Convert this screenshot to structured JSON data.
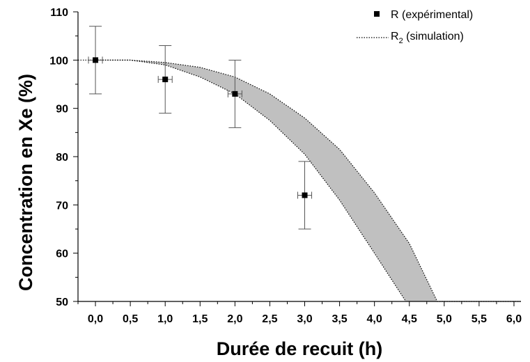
{
  "chart_data": {
    "type": "scatter",
    "title": "",
    "xlabel": "Durée de recuit (h)",
    "ylabel": "Concentration en Xe (%)",
    "xlim": [
      -0.25,
      6.1
    ],
    "ylim": [
      50,
      110
    ],
    "x_ticks": [
      0.0,
      0.5,
      1.0,
      1.5,
      2.0,
      2.5,
      3.0,
      3.5,
      4.0,
      4.5,
      5.0,
      5.5,
      6.0
    ],
    "x_tick_labels": [
      "0,0",
      "0,5",
      "1,0",
      "1,5",
      "2,0",
      "2,5",
      "3,0",
      "3,5",
      "4,0",
      "4,5",
      "5,0",
      "5,5",
      "6,0"
    ],
    "y_ticks": [
      50,
      60,
      70,
      80,
      90,
      100,
      110
    ],
    "y_tick_labels": [
      "50",
      "60",
      "70",
      "80",
      "90",
      "100",
      "110"
    ],
    "grid": false,
    "legend_position": "top-right",
    "legend": {
      "r_label": "R (expérimental)",
      "r2_main": "R",
      "r2_sub": "2",
      "r2_rest": " (simulation)"
    },
    "series": [
      {
        "name": "R (expérimental)",
        "marker": "square",
        "color": "#000000",
        "x": [
          0.0,
          1.0,
          2.0,
          3.0
        ],
        "y": [
          100,
          96,
          93,
          72
        ],
        "yerr": [
          7,
          7,
          7,
          7
        ],
        "xerr": [
          0.1,
          0.1,
          0.1,
          0.1
        ]
      },
      {
        "name": "R2 (simulation)",
        "style": "dotted",
        "color": "#000000",
        "fill_color": "#c0c0c0",
        "upper": {
          "x": [
            -0.25,
            0.0,
            0.5,
            1.0,
            1.5,
            2.0,
            2.5,
            3.0,
            3.5,
            4.0,
            4.5,
            4.9,
            6.1
          ],
          "y": [
            100,
            100,
            100,
            99.5,
            98.5,
            96.5,
            93,
            88,
            81.5,
            72.5,
            62,
            50,
            50
          ]
        },
        "lower": {
          "x": [
            0.0,
            0.5,
            1.0,
            1.5,
            2.0,
            2.5,
            3.0,
            3.5,
            4.0,
            4.45
          ],
          "y": [
            100,
            100,
            99,
            96.5,
            93,
            87.5,
            80.5,
            71,
            60,
            50
          ]
        }
      }
    ]
  }
}
